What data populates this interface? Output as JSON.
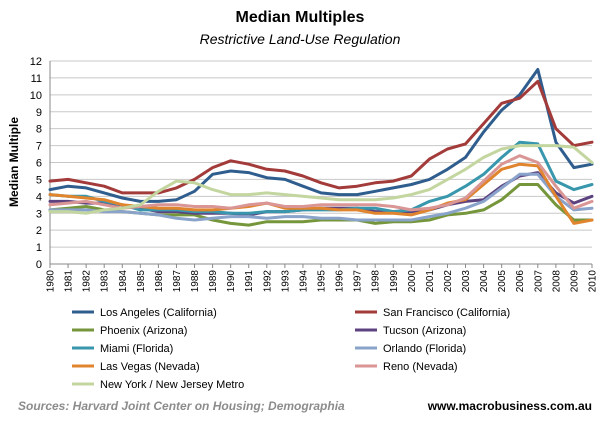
{
  "chart_data": {
    "type": "line",
    "title": "Median Multiples",
    "subtitle": "Restrictive Land-Use Regulation",
    "xlabel": "",
    "ylabel": "Median Multiple",
    "ylim": [
      0,
      12
    ],
    "yticks": [
      0,
      1,
      2,
      3,
      4,
      5,
      6,
      7,
      8,
      9,
      10,
      11,
      12
    ],
    "grid": true,
    "categories": [
      "1980",
      "1981",
      "1982",
      "1983",
      "1984",
      "1985",
      "1986",
      "1987",
      "1988",
      "1989",
      "1990",
      "1991",
      "1992",
      "1993",
      "1994",
      "1995",
      "1996",
      "1997",
      "1998",
      "1999",
      "2000",
      "2001",
      "2002",
      "2003",
      "2004",
      "2005",
      "2006",
      "2007",
      "2008",
      "2009",
      "2010"
    ],
    "series": [
      {
        "name": "Los Angeles (California)",
        "color": "#2e5d8e",
        "values": [
          4.4,
          4.6,
          4.5,
          4.2,
          3.9,
          3.7,
          3.7,
          3.8,
          4.3,
          5.3,
          5.5,
          5.4,
          5.1,
          5.0,
          4.6,
          4.2,
          4.1,
          4.1,
          4.3,
          4.5,
          4.7,
          5.0,
          5.6,
          6.3,
          7.8,
          9.1,
          10.0,
          11.5,
          7.2,
          5.7,
          5.9
        ]
      },
      {
        "name": "San Francisco (California)",
        "color": "#a23b3a",
        "values": [
          4.9,
          5.0,
          4.8,
          4.6,
          4.2,
          4.2,
          4.2,
          4.5,
          5.0,
          5.7,
          6.1,
          5.9,
          5.6,
          5.5,
          5.2,
          4.8,
          4.5,
          4.6,
          4.8,
          4.9,
          5.2,
          6.2,
          6.8,
          7.1,
          8.3,
          9.5,
          9.8,
          10.8,
          8.0,
          7.0,
          7.2
        ]
      },
      {
        "name": "Phoenix (Arizona)",
        "color": "#76963c",
        "values": [
          3.2,
          3.3,
          3.4,
          3.2,
          3.1,
          3.0,
          2.9,
          2.9,
          2.9,
          2.6,
          2.4,
          2.3,
          2.5,
          2.5,
          2.5,
          2.6,
          2.6,
          2.6,
          2.4,
          2.5,
          2.5,
          2.6,
          2.9,
          3.0,
          3.2,
          3.8,
          4.7,
          4.7,
          3.5,
          2.6,
          2.6
        ]
      },
      {
        "name": "Tucson (Arizona)",
        "color": "#5d4280",
        "values": [
          3.7,
          3.7,
          3.6,
          3.6,
          3.5,
          3.3,
          3.1,
          3.1,
          3.0,
          3.0,
          3.0,
          2.9,
          3.1,
          3.1,
          3.2,
          3.3,
          3.3,
          3.3,
          3.1,
          3.1,
          3.1,
          3.2,
          3.5,
          3.7,
          3.8,
          4.6,
          5.2,
          5.4,
          4.2,
          3.6,
          4.0
        ]
      },
      {
        "name": "Miami (Florida)",
        "color": "#3897ad",
        "values": [
          4.1,
          4.0,
          4.0,
          3.7,
          3.5,
          3.2,
          3.2,
          3.2,
          3.1,
          3.1,
          3.0,
          3.0,
          3.1,
          3.1,
          3.2,
          3.2,
          3.2,
          3.3,
          3.3,
          3.1,
          3.2,
          3.7,
          4.0,
          4.6,
          5.3,
          6.3,
          7.2,
          7.1,
          4.9,
          4.4,
          4.7
        ]
      },
      {
        "name": "Orlando (Florida)",
        "color": "#8aa3ca",
        "values": [
          3.2,
          3.2,
          3.2,
          3.1,
          3.1,
          3.0,
          2.9,
          2.7,
          2.6,
          2.7,
          2.8,
          2.8,
          2.7,
          2.8,
          2.8,
          2.7,
          2.7,
          2.6,
          2.6,
          2.6,
          2.6,
          2.8,
          3.0,
          3.3,
          3.7,
          4.5,
          5.3,
          5.3,
          4.0,
          3.2,
          3.3
        ]
      },
      {
        "name": "Las Vegas (Nevada)",
        "color": "#e0842e",
        "values": [
          4.1,
          4.0,
          3.9,
          3.8,
          3.5,
          3.4,
          3.3,
          3.3,
          3.2,
          3.2,
          3.3,
          3.4,
          3.6,
          3.3,
          3.3,
          3.3,
          3.2,
          3.2,
          3.0,
          3.0,
          2.9,
          3.2,
          3.6,
          3.8,
          4.7,
          5.6,
          5.9,
          5.8,
          4.0,
          2.4,
          2.6
        ]
      },
      {
        "name": "Reno (Nevada)",
        "color": "#d99694",
        "values": [
          3.5,
          3.6,
          3.7,
          3.5,
          3.3,
          3.4,
          3.5,
          3.5,
          3.4,
          3.4,
          3.3,
          3.5,
          3.6,
          3.4,
          3.4,
          3.5,
          3.5,
          3.5,
          3.5,
          3.4,
          3.2,
          3.3,
          3.5,
          3.9,
          4.9,
          5.9,
          6.4,
          6.0,
          4.6,
          3.3,
          3.7
        ]
      },
      {
        "name": "New York / New Jersey Metro",
        "color": "#c4d6a0",
        "values": [
          3.1,
          3.1,
          3.0,
          3.2,
          3.3,
          3.5,
          4.3,
          4.9,
          4.8,
          4.4,
          4.1,
          4.1,
          4.2,
          4.1,
          4.0,
          3.9,
          3.8,
          3.8,
          3.8,
          3.9,
          4.1,
          4.4,
          5.0,
          5.6,
          6.3,
          6.8,
          7.0,
          7.0,
          7.0,
          6.9,
          6.0
        ]
      }
    ],
    "legend": {
      "position": "bottom",
      "entries": [
        "Los Angeles (California)",
        "San Francisco (California)",
        "Phoenix (Arizona)",
        "Tucson (Arizona)",
        "Miami (Florida)",
        "Orlando (Florida)",
        "Las Vegas (Nevada)",
        "Reno (Nevada)",
        "New York / New Jersey Metro"
      ]
    }
  },
  "footer": {
    "source": "Sources: Harvard Joint Center on Housing; Demographia",
    "site": "www.macrobusiness.com.au"
  }
}
